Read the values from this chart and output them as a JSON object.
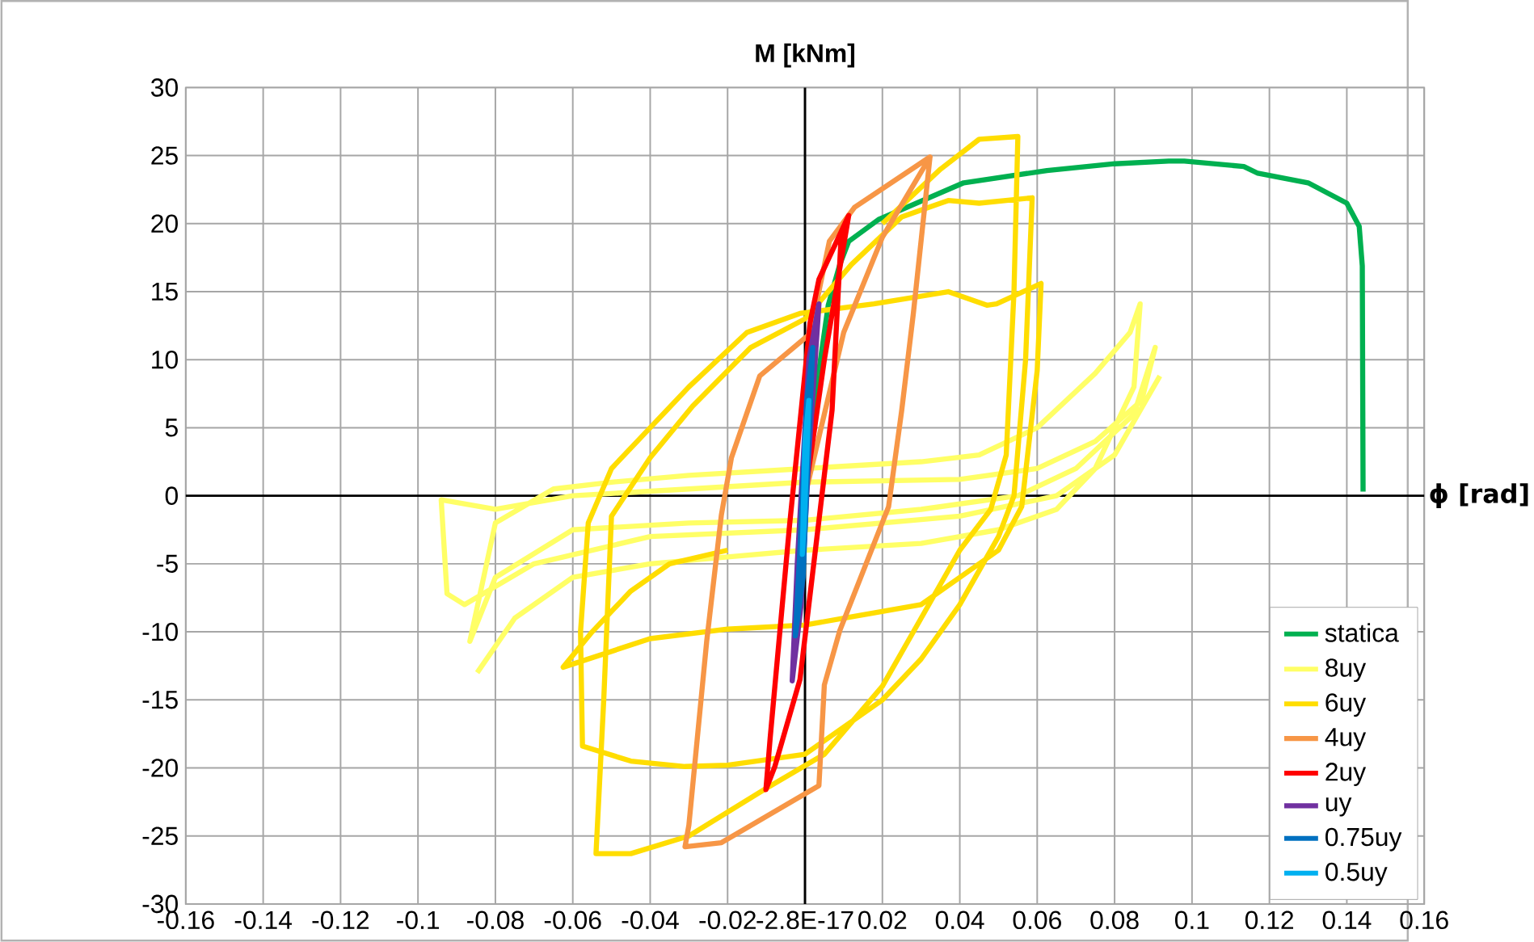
{
  "chart_data": {
    "type": "line",
    "xlabel": "ϕ [rad]",
    "ylabel": "M [kNm]",
    "xlim": [
      -0.16,
      0.16
    ],
    "ylim": [
      -30,
      30
    ],
    "xticks": [
      -0.16,
      -0.14,
      -0.12,
      -0.1,
      -0.08,
      -0.06,
      -0.04,
      -0.02,
      {
        "value": 0,
        "label": "-2.8E-17"
      },
      0.02,
      0.04,
      0.06,
      0.08,
      0.1,
      0.12,
      0.14,
      0.16
    ],
    "yticks": [
      -30,
      -25,
      -20,
      -15,
      -10,
      -5,
      0,
      5,
      10,
      15,
      20,
      25,
      30
    ],
    "grid": true,
    "legend": "bottom right",
    "marker": "none",
    "line_style": "solid",
    "series": [
      {
        "name": "statica",
        "color": "#00b050",
        "x": [
          0,
          0.003,
          0.006,
          0.009,
          0.0113,
          0.019,
          0.041,
          0.0625,
          0.08,
          0.094,
          0.098,
          0.1134,
          0.117,
          0.13,
          0.14,
          0.1432,
          0.144,
          0.1442
        ],
        "values": [
          0,
          8,
          14,
          17,
          18.7,
          20.3,
          23.0,
          23.9,
          24.4,
          24.6,
          24.6,
          24.2,
          23.7,
          23.0,
          21.5,
          19.8,
          16.9,
          0.3
        ]
      },
      {
        "name": "8uy",
        "color": "#ffff66",
        "x": [
          -0.0847,
          -0.075,
          -0.06,
          -0.04,
          -0.02,
          0,
          0.03,
          0.05,
          0.065,
          0.075,
          0.085,
          0.0866,
          0.084,
          0.075,
          0.06,
          0.045,
          0.03,
          0,
          -0.03,
          -0.05,
          -0.065,
          -0.08,
          -0.0866,
          -0.08,
          -0.06,
          -0.03,
          0,
          0.03,
          0.055,
          0.07,
          0.085,
          0.0905,
          0.087,
          0.075,
          0.06,
          0.04,
          0,
          -0.03,
          -0.06,
          -0.08,
          -0.094,
          -0.0925,
          -0.088,
          -0.07,
          -0.04,
          0,
          0.04,
          0.065,
          0.08,
          0.0917
        ],
        "values": [
          -13,
          -9,
          -6,
          -5,
          -4.5,
          -4,
          -3.5,
          -2.5,
          -1,
          2,
          8,
          14.1,
          12,
          9,
          5,
          3,
          2.5,
          2,
          1.5,
          1,
          0.5,
          -2,
          -10.7,
          -6,
          -2.5,
          -2,
          -1.8,
          -1,
          0,
          2,
          6,
          10.9,
          7,
          4,
          2,
          1.2,
          1,
          0.5,
          0,
          -1,
          -0.3,
          -7.2,
          -8,
          -5,
          -3,
          -2.5,
          -1.5,
          0,
          3,
          8.8
        ]
      },
      {
        "name": "6uy",
        "color": "#ffdd00",
        "x": [
          0.02,
          0.035,
          0.045,
          0.055,
          0.054,
          0.052,
          0.048,
          0.04,
          0.03,
          0.02,
          0.005,
          -0.01,
          -0.03,
          -0.045,
          -0.054,
          -0.052,
          -0.05,
          -0.04,
          -0.029,
          -0.014,
          0,
          0.012,
          0.025,
          0.037,
          0.045,
          0.0587,
          0.057,
          0.054,
          0.05,
          0.04,
          0.03,
          0.02,
          0,
          -0.02,
          -0.031,
          -0.045,
          -0.0575,
          -0.058,
          -0.056,
          -0.05,
          -0.04,
          -0.03,
          -0.015,
          -0.0013,
          0.0178,
          0.037,
          0.047,
          0.0495,
          0.061,
          0.06,
          0.056,
          0.05,
          0.03,
          0,
          -0.02,
          -0.04,
          -0.0625,
          -0.055,
          -0.045,
          -0.035,
          -0.02
        ],
        "values": [
          20,
          24,
          26.2,
          26.4,
          15,
          3,
          -1,
          -4,
          -9,
          -14,
          -19,
          -21.5,
          -25,
          -26.3,
          -26.3,
          -15,
          -1.5,
          2.8,
          6.6,
          10.9,
          13,
          17,
          20.5,
          21.7,
          21.5,
          21.9,
          10,
          0,
          -3,
          -8,
          -12,
          -15,
          -19,
          -19.8,
          -19.9,
          -19.5,
          -18.4,
          -10,
          -2,
          2,
          5,
          8,
          12,
          13.4,
          14.1,
          15.0,
          14.0,
          14.1,
          15.6,
          9.2,
          -0.8,
          -4,
          -8,
          -9.5,
          -9.8,
          -10.5,
          -12.6,
          -10,
          -7,
          -5,
          -4
        ]
      },
      {
        "name": "4uy",
        "color": "#f79646",
        "x": [
          0,
          0.01,
          0.02,
          0.0323,
          0.0128,
          0.0063,
          0.0013,
          -0.0117,
          -0.019,
          -0.0216,
          -0.0254,
          -0.03,
          -0.031,
          -0.0216,
          -0.009,
          0.0036,
          0.005,
          0.009,
          0.0216,
          0.025,
          0.028,
          0.0323
        ],
        "values": [
          0,
          12,
          19,
          24.9,
          21.2,
          18.7,
          11.9,
          8.8,
          2.8,
          -1.4,
          -10.7,
          -24.2,
          -25.8,
          -25.5,
          -23.4,
          -21.3,
          -13.9,
          -9.9,
          -0.8,
          6.3,
          13.4,
          24.9
        ]
      },
      {
        "name": "2uy",
        "color": "#ff0000",
        "x": [
          0,
          0.005,
          0.0113,
          0.0036,
          0.0013,
          -0.004,
          -0.009,
          -0.0101,
          -0.0078,
          -0.0013,
          0.007,
          0.0094,
          0.0113
        ],
        "values": [
          0,
          10,
          20.6,
          15.9,
          12.7,
          -2.2,
          -17.8,
          -21.6,
          -19.9,
          -13.5,
          6.3,
          19.4,
          20.6
        ]
      },
      {
        "name": "uy",
        "color": "#7030a0",
        "x": [
          0,
          0.0036,
          0.001,
          -0.002,
          -0.0033,
          -0.001,
          0.001,
          0.0036
        ],
        "values": [
          0,
          14.1,
          10,
          -5,
          -13.6,
          -8,
          3,
          14.1
        ]
      },
      {
        "name": "0.75uy",
        "color": "#0070c0",
        "x": [
          0,
          0.002,
          0.0005,
          -0.0015,
          -0.0025,
          -0.0005,
          0.002
        ],
        "values": [
          0,
          10.9,
          7,
          -5,
          -10.3,
          -6,
          10.9
        ]
      },
      {
        "name": "0.5uy",
        "color": "#00b0f0",
        "x": [
          0,
          0.001,
          0,
          -0.0007,
          -0.0002,
          0.001
        ],
        "values": [
          0,
          7,
          4,
          -4.3,
          -2,
          7
        ]
      }
    ]
  }
}
